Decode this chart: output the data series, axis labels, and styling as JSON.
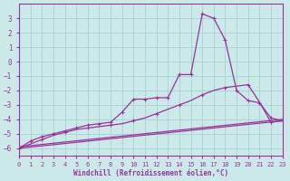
{
  "xlabel": "Windchill (Refroidissement éolien,°C)",
  "xlim": [
    0,
    23
  ],
  "ylim": [
    -6.5,
    4.0
  ],
  "xticks": [
    0,
    1,
    2,
    3,
    4,
    5,
    6,
    7,
    8,
    9,
    10,
    11,
    12,
    13,
    14,
    15,
    16,
    17,
    18,
    19,
    20,
    21,
    22,
    23
  ],
  "yticks": [
    -6,
    -5,
    -4,
    -3,
    -2,
    -1,
    0,
    1,
    2,
    3
  ],
  "bg_color": "#cce9e9",
  "line_color": "#993399",
  "grid_color": "#aad4d4",
  "curve1_x": [
    0,
    1,
    2,
    3,
    4,
    5,
    6,
    7,
    8,
    9,
    10,
    11,
    12,
    13,
    14,
    15,
    16,
    17,
    18,
    19,
    20,
    21,
    22,
    23
  ],
  "curve1_y": [
    -6.0,
    -5.5,
    -5.2,
    -5.0,
    -4.8,
    -4.6,
    -4.4,
    -4.3,
    -4.2,
    -3.5,
    -2.6,
    -2.6,
    -2.5,
    -2.5,
    -0.9,
    -0.9,
    3.3,
    3.0,
    1.5,
    -2.0,
    -2.7,
    -2.85,
    -3.9,
    -4.1
  ],
  "curve2_x": [
    0,
    1,
    2,
    3,
    4,
    5,
    6,
    7,
    8,
    9,
    10,
    11,
    12,
    13,
    14,
    15,
    16,
    17,
    18,
    19,
    20,
    21,
    22,
    23
  ],
  "curve2_y": [
    -6.0,
    -5.7,
    -5.4,
    -5.1,
    -4.9,
    -4.7,
    -4.6,
    -4.5,
    -4.4,
    -4.3,
    -4.1,
    -3.9,
    -3.6,
    -3.3,
    -3.0,
    -2.7,
    -2.3,
    -2.0,
    -1.8,
    -1.7,
    -1.6,
    -2.8,
    -4.2,
    -4.1
  ],
  "line1_x": [
    0,
    23
  ],
  "line1_y": [
    -6.0,
    -4.1
  ],
  "line2_x": [
    0,
    23
  ],
  "line2_y": [
    -5.9,
    -4.0
  ]
}
